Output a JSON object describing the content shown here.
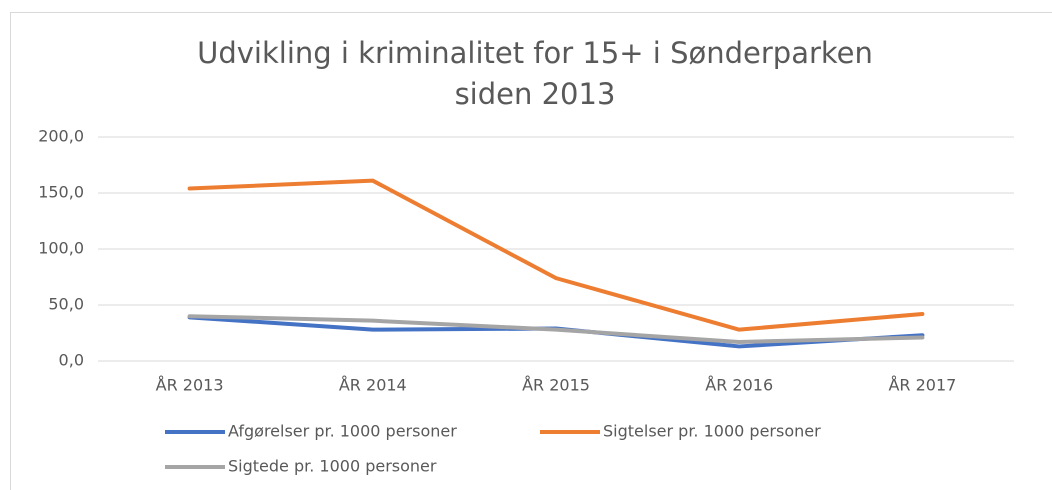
{
  "chart_data": {
    "type": "line",
    "title": [
      "Udvikling i kriminalitet for 15+ i Sønderparken",
      "siden 2013"
    ],
    "categories": [
      "ÅR 2013",
      "ÅR 2014",
      "ÅR 2015",
      "ÅR 2016",
      "ÅR 2017"
    ],
    "series": [
      {
        "name": "Afgørelser pr. 1000 personer",
        "color": "#4472c4",
        "values": [
          39,
          28,
          29,
          13,
          23
        ]
      },
      {
        "name": "Sigtelser pr. 1000 personer",
        "color": "#ed7d31",
        "values": [
          154,
          161,
          74,
          28,
          42
        ]
      },
      {
        "name": "Sigtede pr. 1000 personer",
        "color": "#a5a5a5",
        "values": [
          40,
          36,
          28,
          17,
          21
        ]
      }
    ],
    "ylim": [
      0,
      200
    ],
    "yticks": [
      {
        "value": 0,
        "label": "0,0"
      },
      {
        "value": 50,
        "label": "50,0"
      },
      {
        "value": 100,
        "label": "100,0"
      },
      {
        "value": 150,
        "label": "150,0"
      },
      {
        "value": 200,
        "label": "200,0"
      }
    ],
    "grid": true,
    "legend": "bottom"
  }
}
